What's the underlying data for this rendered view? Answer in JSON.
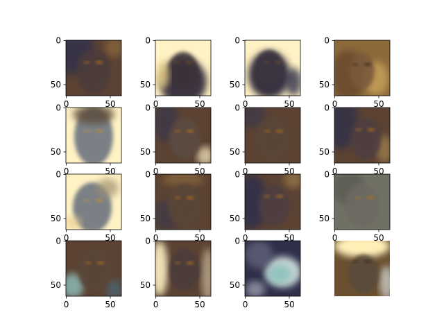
{
  "figure": {
    "grid_rows": 4,
    "grid_cols": 4,
    "axes_visible": [
      true,
      true,
      true,
      true,
      true,
      true,
      true,
      true,
      true,
      true,
      true,
      true,
      true,
      true,
      true,
      false
    ],
    "tick_labels": {
      "x": [
        "0",
        "50"
      ],
      "y": [
        "0",
        "50"
      ]
    },
    "panels": [
      {
        "id": 1,
        "subject": "face, dark brown and navy tones"
      },
      {
        "id": 2,
        "subject": "face, dark with bright pale-yellow background"
      },
      {
        "id": 3,
        "subject": "face, dark with bright pale-yellow background"
      },
      {
        "id": 4,
        "subject": "face, brown ochre tones"
      },
      {
        "id": 5,
        "subject": "face, grey-blue with pale-yellow sides"
      },
      {
        "id": 6,
        "subject": "face, dark brown tones"
      },
      {
        "id": 7,
        "subject": "face, dark brown tones"
      },
      {
        "id": 8,
        "subject": "face, dark brown and navy tones"
      },
      {
        "id": 9,
        "subject": "face, grey-blue with pale-yellow surround"
      },
      {
        "id": 10,
        "subject": "face, dark brown tones"
      },
      {
        "id": 11,
        "subject": "face, dark brown and navy tones"
      },
      {
        "id": 12,
        "subject": "face, grey-olive tones"
      },
      {
        "id": 13,
        "subject": "face, dark brown with teal highlights"
      },
      {
        "id": 14,
        "subject": "face, dark with pale-yellow sides"
      },
      {
        "id": 15,
        "subject": "face, navy and teal-white tones"
      },
      {
        "id": 16,
        "subject": "face, brown with bright yellow top"
      }
    ],
    "colors": {
      "pale_yellow": "#fff2c4",
      "dark_brown": "#5b4232",
      "navy": "#2f2f4a",
      "ochre": "#8c6a3a",
      "grey_blue": "#6d7480",
      "teal": "#8fc1bd",
      "amber": "#b0701c"
    }
  }
}
